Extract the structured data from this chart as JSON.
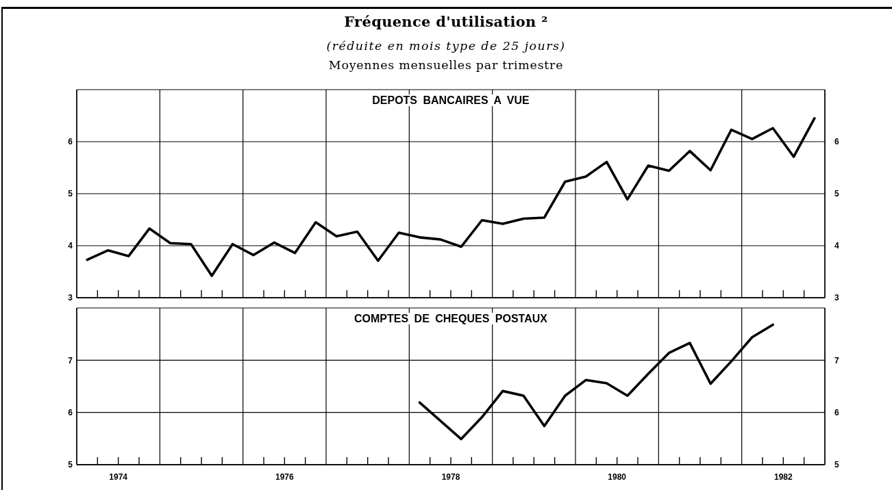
{
  "chart_data": [
    {
      "type": "line",
      "title": "DEPOTS BANCAIRES A VUE",
      "annotations": [
        "Fréquence d'utilisation ²",
        "(réduite en mois type de 25 jours)",
        "Moyennes mensuelles par trimestre"
      ],
      "x": [
        1974.125,
        1974.375,
        1974.625,
        1974.875,
        1975.125,
        1975.375,
        1975.625,
        1975.875,
        1976.125,
        1976.375,
        1976.625,
        1976.875,
        1977.125,
        1977.375,
        1977.625,
        1977.875,
        1978.125,
        1978.375,
        1978.625,
        1978.875,
        1979.125,
        1979.375,
        1979.625,
        1979.875,
        1980.125,
        1980.375,
        1980.625,
        1980.875,
        1981.125,
        1981.375,
        1981.625,
        1981.875,
        1982.125,
        1982.375,
        1982.625,
        1982.875
      ],
      "values": [
        3.73,
        3.91,
        3.8,
        4.33,
        4.05,
        4.03,
        3.42,
        4.03,
        3.82,
        4.06,
        3.86,
        4.45,
        4.18,
        4.27,
        3.71,
        4.25,
        4.16,
        4.12,
        3.98,
        4.49,
        4.42,
        4.52,
        4.54,
        5.23,
        5.33,
        5.61,
        4.89,
        5.54,
        5.44,
        5.82,
        5.45,
        6.23,
        6.05,
        6.26,
        5.71,
        6.45
      ],
      "color": "#000000",
      "line_style": "solid",
      "xlim": [
        1974,
        1983
      ],
      "ylim": [
        3,
        7
      ],
      "yticks": [
        3,
        4,
        5,
        6
      ],
      "y2lim": [
        3,
        7
      ],
      "y2ticks": [
        3,
        4,
        5,
        6
      ],
      "grid": true,
      "tick_labels": "y"
    },
    {
      "type": "line",
      "title": "COMPTES DE CHEQUES POSTAUX",
      "x": [
        1978.125,
        1978.375,
        1978.625,
        1978.875,
        1979.125,
        1979.375,
        1979.625,
        1979.875,
        1980.125,
        1980.375,
        1980.625,
        1980.875,
        1981.125,
        1981.375,
        1981.625,
        1981.875,
        1982.125,
        1982.375
      ],
      "values": [
        6.19,
        5.84,
        5.49,
        5.91,
        6.41,
        6.32,
        5.74,
        6.32,
        6.62,
        6.56,
        6.32,
        6.74,
        7.14,
        7.33,
        6.55,
        6.98,
        7.44,
        7.68
      ],
      "color": "#000000",
      "line_style": "solid",
      "xlim": [
        1974,
        1983
      ],
      "xticks": [
        {
          "value": 1974,
          "label": null
        },
        {
          "value": 1974.25,
          "label": null
        },
        {
          "value": 1974.5,
          "label": "1974"
        },
        {
          "value": 1974.75,
          "label": null
        },
        {
          "value": 1975,
          "label": null
        },
        {
          "value": 1975.25,
          "label": null
        },
        {
          "value": 1975.5,
          "label": null
        },
        {
          "value": 1975.75,
          "label": null
        },
        {
          "value": 1976,
          "label": null
        },
        {
          "value": 1976.25,
          "label": null
        },
        {
          "value": 1976.5,
          "label": "1976"
        },
        {
          "value": 1976.75,
          "label": null
        },
        {
          "value": 1977,
          "label": null
        },
        {
          "value": 1977.25,
          "label": null
        },
        {
          "value": 1977.5,
          "label": null
        },
        {
          "value": 1977.75,
          "label": null
        },
        {
          "value": 1978,
          "label": null
        },
        {
          "value": 1978.25,
          "label": null
        },
        {
          "value": 1978.5,
          "label": "1978"
        },
        {
          "value": 1978.75,
          "label": null
        },
        {
          "value": 1979,
          "label": null
        },
        {
          "value": 1979.25,
          "label": null
        },
        {
          "value": 1979.5,
          "label": null
        },
        {
          "value": 1979.75,
          "label": null
        },
        {
          "value": 1980,
          "label": null
        },
        {
          "value": 1980.25,
          "label": null
        },
        {
          "value": 1980.5,
          "label": "1980"
        },
        {
          "value": 1980.75,
          "label": null
        },
        {
          "value": 1981,
          "label": null
        },
        {
          "value": 1981.25,
          "label": null
        },
        {
          "value": 1981.5,
          "label": null
        },
        {
          "value": 1981.75,
          "label": null
        },
        {
          "value": 1982,
          "label": null
        },
        {
          "value": 1982.25,
          "label": null
        },
        {
          "value": 1982.5,
          "label": "1982"
        },
        {
          "value": 1982.75,
          "label": null
        },
        {
          "value": 1983,
          "label": null
        }
      ],
      "ylim": [
        5,
        8
      ],
      "yticks": [
        5,
        6,
        7
      ],
      "y2lim": [
        5,
        8
      ],
      "y2ticks": [
        5,
        6,
        7
      ],
      "grid": true
    }
  ]
}
